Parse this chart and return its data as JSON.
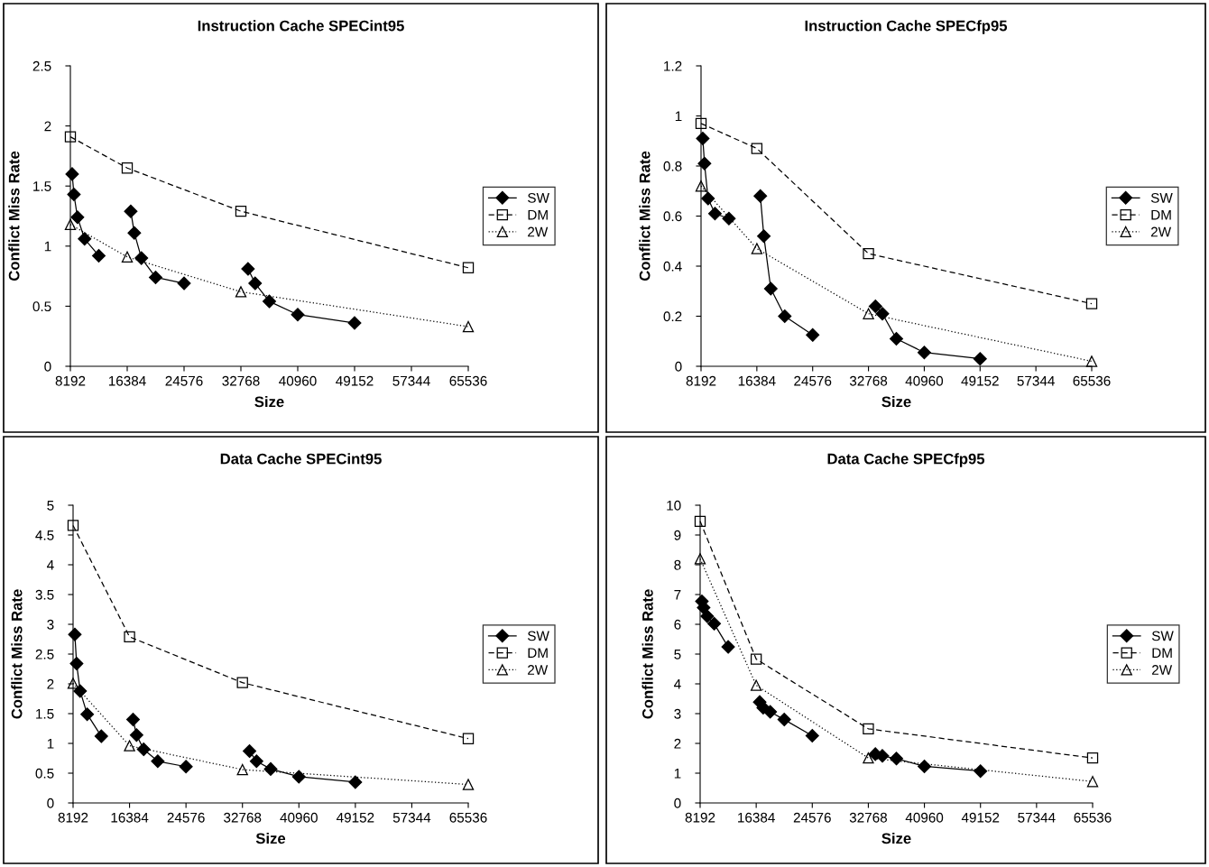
{
  "chart_data": [
    {
      "type": "line",
      "title": "Instruction Cache SPECint95",
      "xlabel": "Size",
      "ylabel": "Conflict Miss Rate",
      "xlim": [
        8192,
        65536
      ],
      "xticks": [
        8192,
        16384,
        24576,
        32768,
        40960,
        49152,
        57344,
        65536
      ],
      "ylim": [
        0,
        2.5
      ],
      "yticks": [
        0,
        {
          "value": 0.5,
          "label": "0.5"
        },
        1,
        {
          "value": 1.5,
          "label": "1.5"
        },
        2,
        {
          "value": 2.5,
          "label": "2.5"
        }
      ],
      "grid": false,
      "legend": "right",
      "series": [
        {
          "name": "SW",
          "color": "#000000",
          "marker": "diamond",
          "line_style": "solid",
          "x": [
            8448,
            8704,
            9216,
            10240,
            12288,
            16384,
            16896,
            17408,
            18432,
            20480,
            24576,
            32768,
            33792,
            34816,
            36864,
            40960,
            49152
          ],
          "values": [
            1.6,
            1.43,
            1.24,
            1.06,
            0.92,
            null,
            1.29,
            1.11,
            0.9,
            0.74,
            0.69,
            null,
            0.81,
            0.69,
            0.54,
            0.43,
            0.36
          ]
        },
        {
          "name": "DM",
          "color": "#000000",
          "marker": "square",
          "line_style": "dashed",
          "x": [
            8192,
            16384,
            32768,
            65536
          ],
          "values": [
            1.91,
            1.65,
            1.29,
            0.82
          ]
        },
        {
          "name": "2W",
          "color": "#000000",
          "marker": "triangle",
          "line_style": "dotted",
          "x": [
            8192,
            16384,
            32768,
            65536
          ],
          "values": [
            1.18,
            0.91,
            0.62,
            0.33
          ]
        }
      ]
    },
    {
      "type": "line",
      "title": "Instruction Cache SPECfp95",
      "xlabel": "Size",
      "ylabel": "Conflict Miss Rate",
      "xlim": [
        8192,
        65536
      ],
      "xticks": [
        8192,
        16384,
        24576,
        32768,
        40960,
        49152,
        57344,
        65536
      ],
      "ylim": [
        0,
        1.2
      ],
      "yticks": [
        0,
        {
          "value": 0.2,
          "label": "0.2"
        },
        {
          "value": 0.4,
          "label": "0.4"
        },
        {
          "value": 0.6,
          "label": "0.6"
        },
        {
          "value": 0.8,
          "label": "0.8"
        },
        1,
        {
          "value": 1.2,
          "label": "1.2"
        }
      ],
      "grid": false,
      "legend": "right",
      "series": [
        {
          "name": "SW",
          "color": "#000000",
          "marker": "diamond",
          "line_style": "solid",
          "x": [
            8448,
            8704,
            9216,
            10240,
            12288,
            16384,
            16896,
            17408,
            18432,
            20480,
            24576,
            32768,
            33792,
            34816,
            36864,
            40960,
            49152
          ],
          "values": [
            0.91,
            0.81,
            0.67,
            0.61,
            0.59,
            null,
            0.68,
            0.52,
            0.31,
            0.2,
            0.125,
            null,
            0.24,
            0.21,
            0.11,
            0.055,
            0.03
          ]
        },
        {
          "name": "DM",
          "color": "#000000",
          "marker": "square",
          "line_style": "dashed",
          "x": [
            8192,
            16384,
            32768,
            65536
          ],
          "values": [
            0.97,
            0.87,
            0.45,
            0.25
          ]
        },
        {
          "name": "2W",
          "color": "#000000",
          "marker": "triangle",
          "line_style": "dotted",
          "x": [
            8192,
            16384,
            32768,
            65536
          ],
          "values": [
            0.72,
            0.47,
            0.21,
            0.02
          ]
        }
      ]
    },
    {
      "type": "line",
      "title": "Data Cache SPECint95",
      "xlabel": "Size",
      "ylabel": "Conflict Miss Rate",
      "xlim": [
        8192,
        65536
      ],
      "xticks": [
        8192,
        16384,
        24576,
        32768,
        40960,
        49152,
        57344,
        65536
      ],
      "ylim": [
        0,
        5
      ],
      "yticks": [
        0,
        {
          "value": 0.5,
          "label": "0.5"
        },
        1,
        {
          "value": 1.5,
          "label": "1.5"
        },
        2,
        {
          "value": 2.5,
          "label": "2.5"
        },
        3,
        {
          "value": 3.5,
          "label": "3.5"
        },
        4,
        {
          "value": 4.5,
          "label": "4.5"
        },
        5
      ],
      "grid": false,
      "legend": "right",
      "series": [
        {
          "name": "SW",
          "color": "#000000",
          "marker": "diamond",
          "line_style": "solid",
          "x": [
            8448,
            8704,
            9216,
            10240,
            12288,
            16384,
            16896,
            17408,
            18432,
            20480,
            24576,
            32768,
            33792,
            34816,
            36864,
            40960,
            49152
          ],
          "values": [
            2.83,
            2.34,
            1.88,
            1.49,
            1.12,
            null,
            1.4,
            1.14,
            0.9,
            0.7,
            0.61,
            null,
            0.87,
            0.7,
            0.57,
            0.44,
            0.35
          ]
        },
        {
          "name": "DM",
          "color": "#000000",
          "marker": "square",
          "line_style": "dashed",
          "x": [
            8192,
            16384,
            32768,
            65536
          ],
          "values": [
            4.66,
            2.79,
            2.02,
            1.08
          ]
        },
        {
          "name": "2W",
          "color": "#000000",
          "marker": "triangle",
          "line_style": "dotted",
          "x": [
            8192,
            16384,
            32768,
            65536
          ],
          "values": [
            2.01,
            0.96,
            0.56,
            0.31
          ]
        }
      ]
    },
    {
      "type": "line",
      "title": "Data Cache SPECfp95",
      "xlabel": "Size",
      "ylabel": "Conflict Miss Rate",
      "xlim": [
        8192,
        65536
      ],
      "xticks": [
        8192,
        16384,
        24576,
        32768,
        40960,
        49152,
        57344,
        65536
      ],
      "ylim": [
        0,
        10
      ],
      "yticks": [
        0,
        1,
        2,
        3,
        4,
        5,
        6,
        7,
        8,
        9,
        10
      ],
      "grid": false,
      "legend": "right",
      "series": [
        {
          "name": "SW",
          "color": "#000000",
          "marker": "diamond",
          "line_style": "solid",
          "x": [
            8448,
            8704,
            9216,
            10240,
            12288,
            16384,
            16896,
            17408,
            18432,
            20480,
            24576,
            32768,
            33792,
            34816,
            36864,
            40960,
            49152
          ],
          "values": [
            6.77,
            6.56,
            6.27,
            6.02,
            5.24,
            null,
            3.39,
            3.2,
            3.06,
            2.8,
            2.26,
            null,
            1.64,
            1.58,
            1.49,
            1.23,
            1.07
          ]
        },
        {
          "name": "DM",
          "color": "#000000",
          "marker": "square",
          "line_style": "dashed",
          "x": [
            8192,
            16384,
            32768,
            65536
          ],
          "values": [
            9.46,
            4.83,
            2.49,
            1.51
          ]
        },
        {
          "name": "2W",
          "color": "#000000",
          "marker": "triangle",
          "line_style": "dotted",
          "x": [
            8192,
            16384,
            32768,
            65536
          ],
          "values": [
            8.2,
            3.95,
            1.51,
            0.72
          ]
        }
      ]
    }
  ]
}
